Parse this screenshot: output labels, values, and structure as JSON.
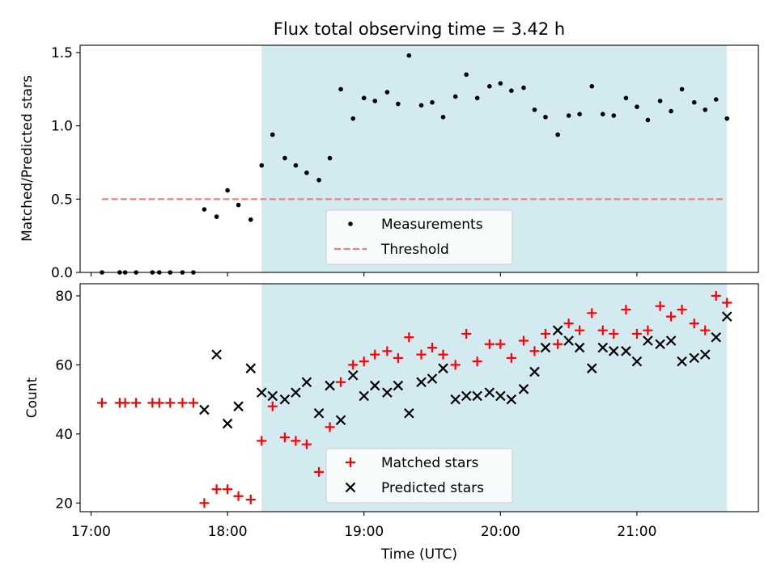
{
  "chart_data": [
    {
      "type": "scatter",
      "title": "Flux total observing time = 3.42 h",
      "ylabel": "Matched/Predicted stars",
      "xlabel": "",
      "xlim": [
        16.92,
        21.89
      ],
      "ylim": [
        0,
        1.55
      ],
      "yticks": [
        0.0,
        0.5,
        1.0,
        1.5
      ],
      "ytick_labels": [
        "0.0",
        "0.5",
        "1.0",
        "1.5"
      ],
      "xticks": [
        17,
        18,
        19,
        20,
        21
      ],
      "shaded_region": {
        "x": [
          18.25,
          21.66
        ],
        "color": "#d4eaf1"
      },
      "threshold": {
        "label": "Threshold",
        "y": 0.5,
        "x": [
          17.08,
          21.64
        ],
        "color": "#f08080"
      },
      "legend": {
        "placement": "lower-center",
        "entries": [
          "Measurements",
          "Threshold"
        ]
      },
      "series": [
        {
          "name": "Measurements",
          "marker": "dot",
          "color": "#000000",
          "x": [
            17.08,
            17.21,
            17.25,
            17.33,
            17.45,
            17.5,
            17.58,
            17.67,
            17.75,
            17.83,
            17.92,
            18.0,
            18.08,
            18.17,
            18.25,
            18.33,
            18.42,
            18.5,
            18.58,
            18.67,
            18.75,
            18.83,
            18.92,
            19.0,
            19.08,
            19.17,
            19.25,
            19.33,
            19.42,
            19.5,
            19.58,
            19.67,
            19.75,
            19.83,
            19.92,
            20.0,
            20.08,
            20.17,
            20.25,
            20.33,
            20.42,
            20.5,
            20.58,
            20.67,
            20.75,
            20.83,
            20.92,
            21.0,
            21.08,
            21.17,
            21.25,
            21.33,
            21.42,
            21.5,
            21.58,
            21.66
          ],
          "y": [
            0.0,
            0.0,
            0.0,
            0.0,
            0.0,
            0.0,
            0.0,
            0.0,
            0.0,
            0.43,
            0.38,
            0.56,
            0.46,
            0.36,
            0.73,
            0.94,
            0.78,
            0.73,
            0.68,
            0.63,
            0.78,
            1.25,
            1.05,
            1.19,
            1.17,
            1.23,
            1.15,
            1.48,
            1.14,
            1.16,
            1.06,
            1.2,
            1.35,
            1.19,
            1.27,
            1.29,
            1.24,
            1.26,
            1.11,
            1.06,
            0.94,
            1.07,
            1.08,
            1.27,
            1.08,
            1.07,
            1.19,
            1.13,
            1.04,
            1.17,
            1.1,
            1.25,
            1.16,
            1.11,
            1.18,
            1.05
          ]
        }
      ]
    },
    {
      "type": "scatter",
      "title": "",
      "ylabel": "Count",
      "xlabel": "Time (UTC)",
      "xlim": [
        16.92,
        21.89
      ],
      "ylim": [
        17.5,
        83.5
      ],
      "yticks": [
        20,
        40,
        60,
        80
      ],
      "ytick_labels": [
        "20",
        "40",
        "60",
        "80"
      ],
      "xticks": [
        17,
        18,
        19,
        20,
        21
      ],
      "xtick_labels": [
        "17:00",
        "18:00",
        "19:00",
        "20:00",
        "21:00"
      ],
      "shaded_region": {
        "x": [
          18.25,
          21.66
        ],
        "color": "#d4eaf1"
      },
      "legend": {
        "placement": "lower-center",
        "entries": [
          "Matched stars",
          "Predicted stars"
        ]
      },
      "series": [
        {
          "name": "Matched stars",
          "marker": "plus",
          "color": "#ff0000",
          "x": [
            17.08,
            17.21,
            17.25,
            17.33,
            17.45,
            17.5,
            17.58,
            17.67,
            17.75,
            17.83,
            17.92,
            18.0,
            18.08,
            18.17,
            18.25,
            18.33,
            18.42,
            18.5,
            18.58,
            18.67,
            18.75,
            18.83,
            18.92,
            19.0,
            19.08,
            19.17,
            19.25,
            19.33,
            19.42,
            19.5,
            19.58,
            19.67,
            19.75,
            19.83,
            19.92,
            20.0,
            20.08,
            20.17,
            20.25,
            20.33,
            20.42,
            20.5,
            20.58,
            20.67,
            20.75,
            20.83,
            20.92,
            21.0,
            21.08,
            21.17,
            21.25,
            21.33,
            21.42,
            21.5,
            21.58,
            21.66
          ],
          "y": [
            49,
            49,
            49,
            49,
            49,
            49,
            49,
            49,
            49,
            20,
            24,
            24,
            22,
            21,
            38,
            48,
            39,
            38,
            37,
            29,
            42,
            55,
            60,
            61,
            63,
            64,
            62,
            68,
            63,
            65,
            63,
            60,
            69,
            61,
            66,
            66,
            62,
            67,
            64,
            69,
            66,
            72,
            70,
            75,
            70,
            69,
            76,
            69,
            70,
            77,
            74,
            76,
            72,
            70,
            80,
            78
          ]
        },
        {
          "name": "Predicted stars",
          "marker": "x",
          "color": "#000000",
          "x": [
            17.83,
            17.92,
            18.0,
            18.08,
            18.17,
            18.25,
            18.33,
            18.42,
            18.5,
            18.58,
            18.67,
            18.75,
            18.83,
            18.92,
            19.0,
            19.08,
            19.17,
            19.25,
            19.33,
            19.42,
            19.5,
            19.58,
            19.67,
            19.75,
            19.83,
            19.92,
            20.0,
            20.08,
            20.17,
            20.25,
            20.33,
            20.42,
            20.5,
            20.58,
            20.67,
            20.75,
            20.83,
            20.92,
            21.0,
            21.08,
            21.17,
            21.25,
            21.33,
            21.42,
            21.5,
            21.58,
            21.66
          ],
          "y": [
            47,
            63,
            43,
            48,
            59,
            52,
            51,
            50,
            52,
            55,
            46,
            54,
            44,
            57,
            51,
            54,
            52,
            54,
            46,
            55,
            56,
            59,
            50,
            51,
            51,
            52,
            51,
            50,
            53,
            58,
            65,
            70,
            67,
            65,
            59,
            65,
            64,
            64,
            61,
            67,
            66,
            67,
            61,
            62,
            63,
            68,
            74
          ]
        }
      ]
    }
  ]
}
